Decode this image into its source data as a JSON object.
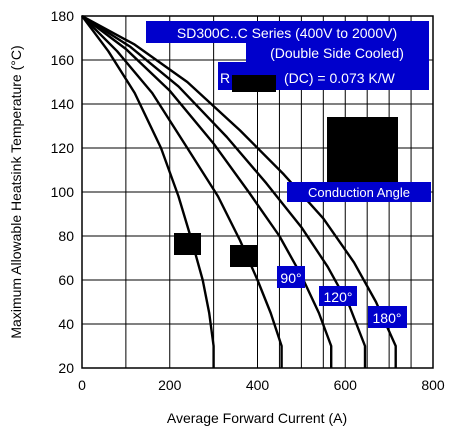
{
  "chart_data": {
    "type": "line",
    "xlabel": "Average Forward Current (A)",
    "ylabel": "Maximum Allowable Heatsink Temperature (°C)",
    "xlim": [
      0,
      800
    ],
    "ylim": [
      20,
      180
    ],
    "xticks": [
      0,
      200,
      400,
      600,
      800
    ],
    "yticks": [
      20,
      40,
      60,
      80,
      100,
      120,
      140,
      160,
      180
    ],
    "xtick_labels": [
      "0",
      "200",
      "400",
      "600",
      "800"
    ],
    "ytick_labels": [
      "20",
      "40",
      "60",
      "80",
      "100",
      "120",
      "140",
      "160",
      "180"
    ],
    "x_gridlines": [
      0,
      100,
      200,
      300,
      400,
      450,
      500,
      550,
      600,
      650,
      700,
      750,
      800
    ],
    "y_gridlines": [
      20,
      40,
      60,
      80,
      100,
      120,
      140,
      160,
      180
    ],
    "grid": true,
    "annotations": [
      {
        "text": "SD300C..C Series (400V to 2000V)"
      },
      {
        "text": "(Double Side Cooled)"
      },
      {
        "text": "R",
        "suffix": "(DC) = 0.073 K/W"
      },
      {
        "text": "Conduction Angle"
      },
      {
        "text": "90°"
      },
      {
        "text": "120°"
      },
      {
        "text": "180°"
      }
    ],
    "series": [
      {
        "points": [
          [
            0,
            180
          ],
          [
            60,
            164
          ],
          [
            120,
            145
          ],
          [
            180,
            120
          ],
          [
            220,
            98
          ],
          [
            250,
            78
          ],
          [
            275,
            60
          ],
          [
            290,
            45
          ],
          [
            300,
            30
          ],
          [
            300,
            20
          ]
        ]
      },
      {
        "points": [
          [
            0,
            180
          ],
          [
            80,
            164
          ],
          [
            160,
            145
          ],
          [
            240,
            120
          ],
          [
            310,
            98
          ],
          [
            360,
            78
          ],
          [
            400,
            60
          ],
          [
            430,
            45
          ],
          [
            455,
            30
          ],
          [
            455,
            20
          ]
        ]
      },
      {
        "points": [
          [
            0,
            180
          ],
          [
            100,
            165
          ],
          [
            200,
            146
          ],
          [
            300,
            122
          ],
          [
            380,
            100
          ],
          [
            450,
            80
          ],
          [
            500,
            62
          ],
          [
            540,
            45
          ],
          [
            568,
            30
          ],
          [
            568,
            20
          ]
        ]
      },
      {
        "points": [
          [
            0,
            180
          ],
          [
            110,
            166
          ],
          [
            220,
            148
          ],
          [
            330,
            125
          ],
          [
            420,
            104
          ],
          [
            500,
            84
          ],
          [
            560,
            66
          ],
          [
            610,
            48
          ],
          [
            645,
            30
          ],
          [
            645,
            20
          ]
        ]
      },
      {
        "points": [
          [
            0,
            180
          ],
          [
            120,
            167
          ],
          [
            240,
            150
          ],
          [
            360,
            128
          ],
          [
            460,
            108
          ],
          [
            550,
            88
          ],
          [
            620,
            68
          ],
          [
            670,
            50
          ],
          [
            715,
            30
          ],
          [
            715,
            20
          ]
        ]
      }
    ],
    "colors": {
      "line": "#000000",
      "grid": "#000000",
      "label_box": "#0000cc",
      "label_text": "#ffffff",
      "block": "#000000"
    }
  }
}
